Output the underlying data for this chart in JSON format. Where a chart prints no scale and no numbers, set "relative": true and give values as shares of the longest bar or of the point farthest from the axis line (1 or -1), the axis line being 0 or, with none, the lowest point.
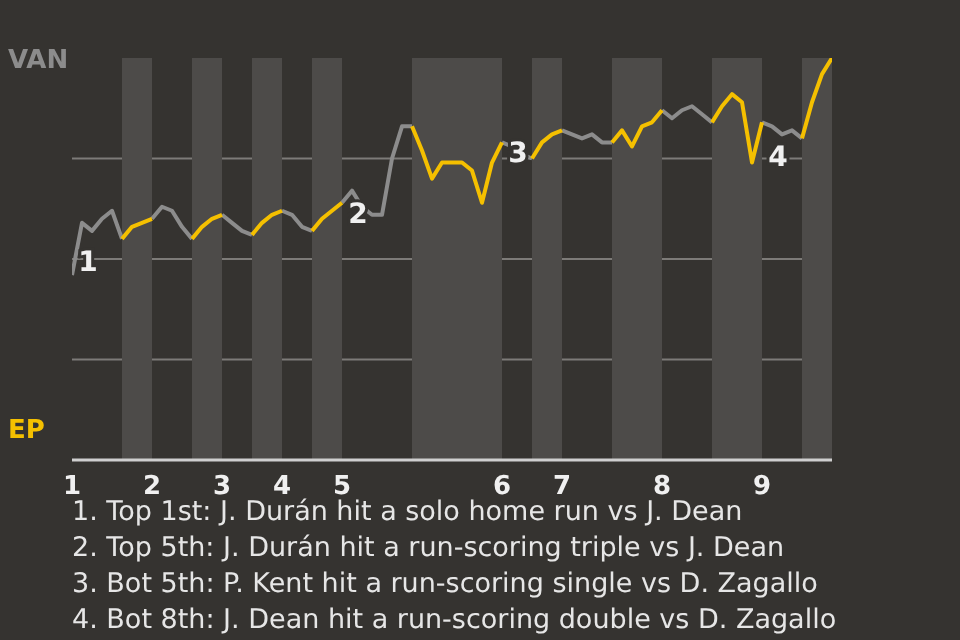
{
  "chart_data": {
    "type": "line",
    "relative": true,
    "grid": "y",
    "marker": "none",
    "line_style": "solid",
    "categories": [
      "1",
      null,
      null,
      null,
      null,
      null,
      null,
      null,
      "2",
      null,
      null,
      null,
      null,
      null,
      null,
      "3",
      null,
      null,
      null,
      null,
      null,
      "4",
      null,
      null,
      null,
      null,
      null,
      "5",
      null,
      null,
      null,
      null,
      null,
      null,
      null,
      null,
      null,
      null,
      null,
      null,
      null,
      null,
      null,
      "6",
      null,
      null,
      null,
      null,
      null,
      "7",
      null,
      null,
      null,
      null,
      null,
      null,
      null,
      null,
      null,
      "8",
      null,
      null,
      null,
      null,
      null,
      null,
      null,
      null,
      null,
      "9",
      null,
      null,
      null,
      null,
      null,
      null,
      null
    ],
    "series": [
      {
        "name": "VAN",
        "color": "#8c8c8c",
        "values": [
          0.46,
          0.59,
          0.57,
          0.6,
          0.62,
          0.55,
          null,
          null,
          0.6,
          0.63,
          0.62,
          0.58,
          0.55,
          null,
          null,
          0.61,
          0.59,
          0.57,
          0.56,
          null,
          null,
          0.62,
          0.61,
          0.58,
          0.57,
          null,
          null,
          0.64,
          0.67,
          0.63,
          0.61,
          0.61,
          0.75,
          0.83,
          0.83,
          null,
          null,
          null,
          null,
          null,
          null,
          null,
          null,
          0.79,
          0.78,
          0.76,
          0.75,
          null,
          null,
          0.82,
          0.81,
          0.8,
          0.81,
          0.79,
          0.79,
          null,
          null,
          null,
          null,
          0.87,
          0.85,
          0.87,
          0.88,
          0.86,
          0.84,
          null,
          null,
          null,
          null,
          0.84,
          0.83,
          0.81,
          0.82,
          0.8,
          null,
          null,
          null
        ]
      },
      {
        "name": "EP",
        "color": "#f5c000",
        "values": [
          null,
          null,
          null,
          null,
          null,
          0.55,
          0.58,
          0.59,
          0.6,
          null,
          null,
          null,
          0.55,
          0.58,
          0.6,
          0.61,
          null,
          null,
          0.56,
          0.59,
          0.61,
          0.62,
          null,
          null,
          0.57,
          0.6,
          0.62,
          0.64,
          null,
          null,
          null,
          null,
          null,
          null,
          0.83,
          0.77,
          0.7,
          0.74,
          0.74,
          0.74,
          0.72,
          0.64,
          0.74,
          0.79,
          null,
          null,
          0.75,
          0.79,
          0.81,
          0.82,
          null,
          null,
          null,
          null,
          0.79,
          0.82,
          0.78,
          0.83,
          0.84,
          0.87,
          null,
          null,
          null,
          null,
          0.84,
          0.88,
          0.91,
          0.89,
          0.74,
          0.84,
          null,
          null,
          null,
          0.8,
          0.89,
          0.96,
          1
        ]
      }
    ],
    "annotations": [
      {
        "text": "1",
        "x": "1",
        "y": 0.52
      },
      {
        "text": "2",
        "x": "5",
        "y": 0.64
      },
      {
        "text": "3",
        "x": "6",
        "y": 0.79
      },
      {
        "text": "4",
        "x": "9",
        "y": 0.78
      },
      "1. Top 1st: J. Durán hit a solo home run vs J. Dean",
      "2. Top 5th: J. Durán hit a run-scoring triple vs J. Dean",
      "3. Bot 5th: P. Kent hit a run-scoring single vs D. Zagallo",
      "4. Bot 8th: J. Dean hit a run-scoring double vs D. Zagallo"
    ]
  }
}
